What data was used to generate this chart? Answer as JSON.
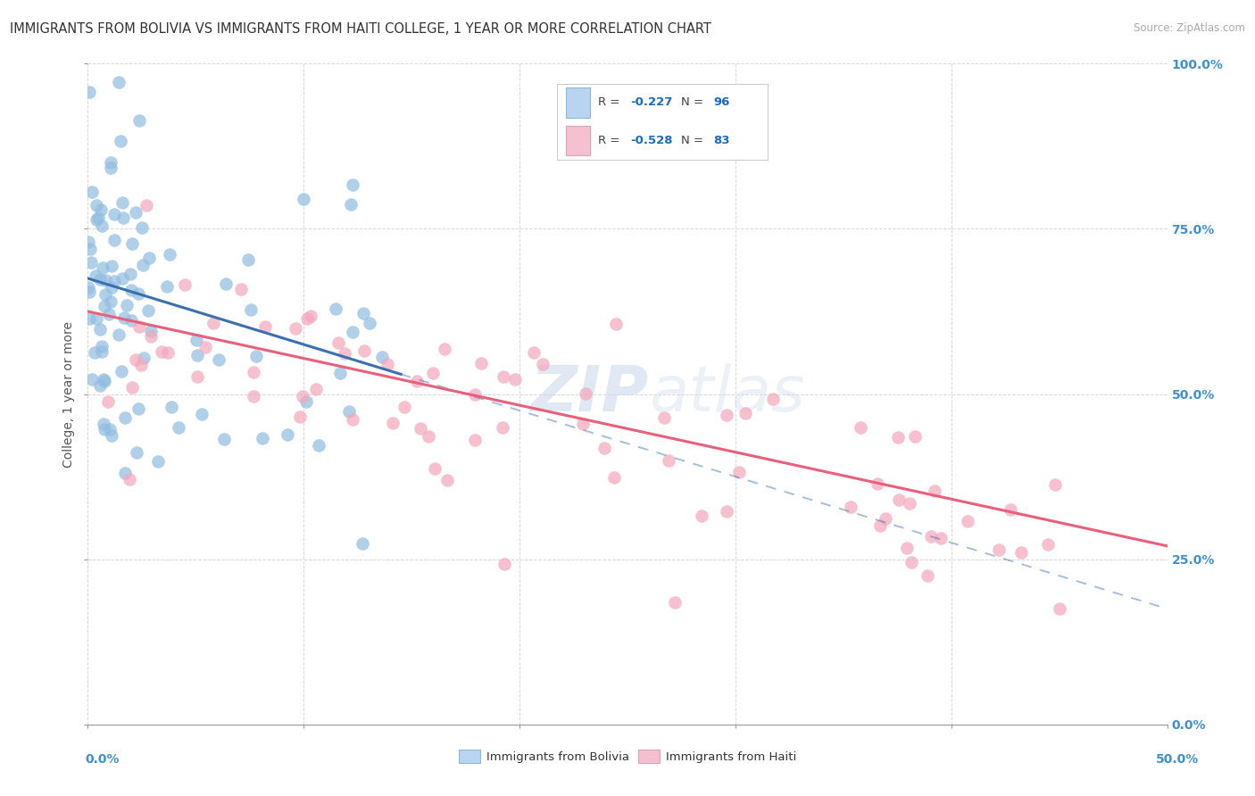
{
  "title": "IMMIGRANTS FROM BOLIVIA VS IMMIGRANTS FROM HAITI COLLEGE, 1 YEAR OR MORE CORRELATION CHART",
  "source": "Source: ZipAtlas.com",
  "ylabel": "College, 1 year or more",
  "x_min": 0.0,
  "x_max": 0.5,
  "y_min": 0.0,
  "y_max": 1.0,
  "bolivia_color": "#92bde0",
  "haiti_color": "#f4a8bc",
  "bolivia_line_color": "#3a70b0",
  "haiti_line_color": "#e8607a",
  "r_bolivia": -0.227,
  "n_bolivia": 96,
  "r_haiti": -0.528,
  "n_haiti": 83,
  "legend_r_color": "#1a6bbf",
  "legend_box_bolivia": "#b8d4f0",
  "legend_box_haiti": "#f5c0d0",
  "watermark": "ZIPatlas",
  "background_color": "#ffffff",
  "grid_color": "#d8d8d8",
  "right_axis_color": "#4090d0",
  "bottom_label_color": "#4090d0",
  "bolivia_line_x_end": 0.145,
  "haiti_line_x_start": 0.0,
  "haiti_line_x_end": 0.5
}
